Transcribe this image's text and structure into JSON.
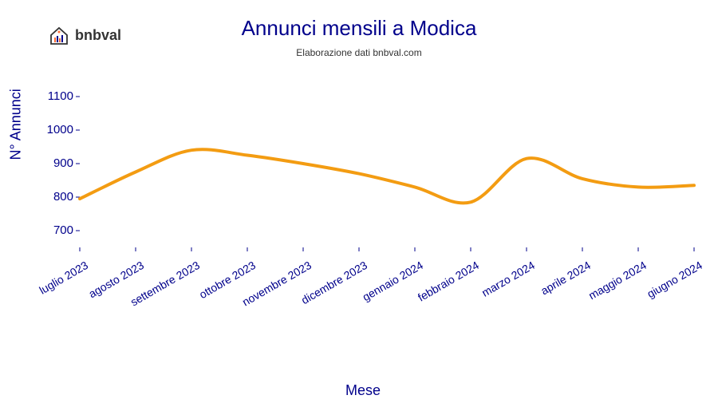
{
  "logo": {
    "text": "bnbval",
    "icon_name": "house-chart-icon",
    "house_fill": "#ffffff",
    "house_stroke": "#333333",
    "bars_colors": [
      "#ff6b35",
      "#00008b",
      "#ff6b35",
      "#00008b"
    ],
    "dot_color": "#ff6b35"
  },
  "chart": {
    "type": "line",
    "title": "Annunci mensili a Modica",
    "title_fontsize": 26,
    "title_color": "#00008b",
    "subtitle": "Elaborazione dati bnbval.com",
    "subtitle_fontsize": 12,
    "subtitle_color": "#333333",
    "xlabel": "Mese",
    "ylabel": "N° Annunci",
    "label_fontsize": 18,
    "label_color": "#00008b",
    "tick_fontsize": 15,
    "tick_color": "#00008b",
    "background_color": "#ffffff",
    "line_color": "#f39c12",
    "line_width": 4,
    "ylim": [
      650,
      1150
    ],
    "yticks": [
      700,
      800,
      900,
      1000,
      1100
    ],
    "x_categories": [
      "luglio 2023",
      "agosto 2023",
      "settembre 2023",
      "ottobre 2023",
      "novembre 2023",
      "dicembre 2023",
      "gennaio 2024",
      "febbraio 2024",
      "marzo 2024",
      "aprile 2024",
      "maggio 2024",
      "giugno 2024"
    ],
    "y_values": [
      795,
      875,
      940,
      925,
      900,
      870,
      830,
      785,
      915,
      855,
      830,
      835
    ],
    "x_tick_rotation": -30,
    "smooth": true
  }
}
